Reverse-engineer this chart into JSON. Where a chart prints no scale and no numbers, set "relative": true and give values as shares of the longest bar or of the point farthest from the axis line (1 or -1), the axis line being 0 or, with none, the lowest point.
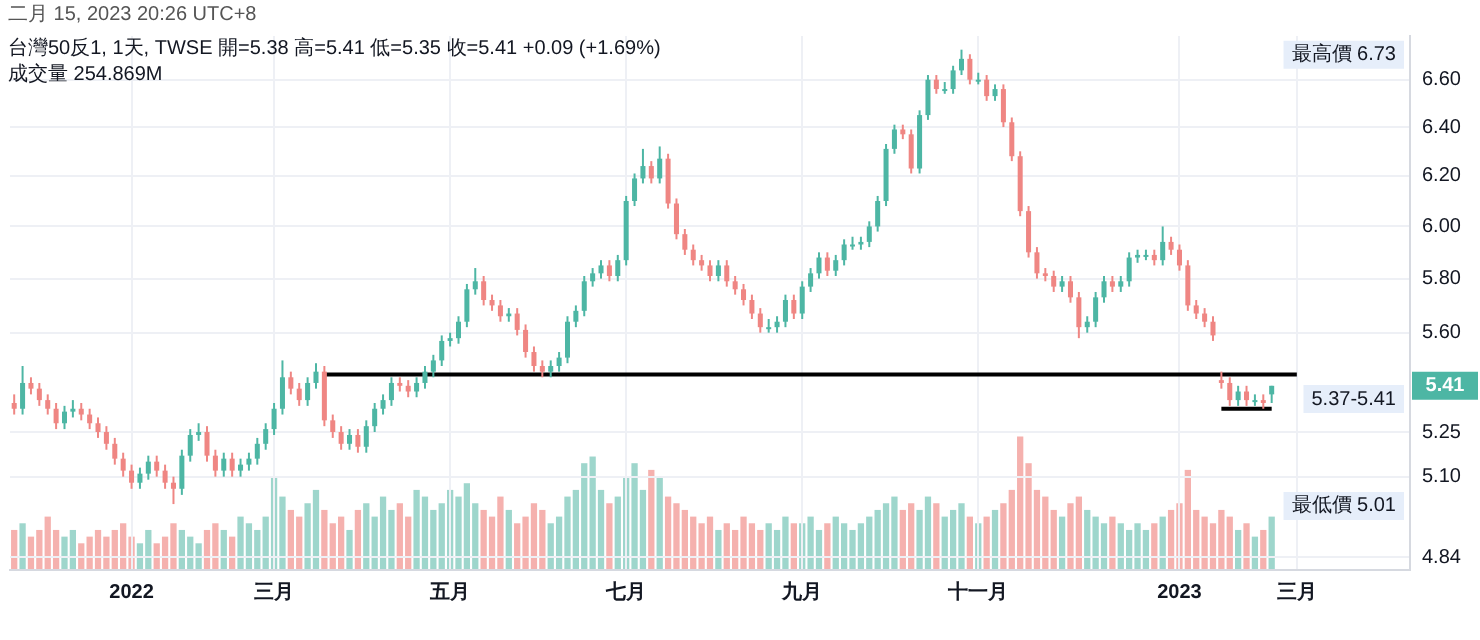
{
  "chart_data": [
    {
      "type": "candlestick",
      "subtitle": "二月 15, 2023 20:26 UTC+8",
      "title": "台灣50反1, 1天, TWSE  開=5.38  高=5.41  低=5.35  收=5.41  +0.09 (+1.69%)",
      "annotations": [
        "成交量 254.869M",
        "最高價 6.73",
        "最低價 5.01",
        "5.37-5.41",
        {
          "text": "5.41",
          "y": 5.41
        }
      ],
      "categories": [
        null,
        null,
        null,
        null,
        null,
        null,
        null,
        null,
        null,
        null,
        null,
        null,
        null,
        null,
        "2022",
        null,
        null,
        null,
        null,
        null,
        null,
        null,
        null,
        null,
        null,
        null,
        null,
        null,
        null,
        null,
        null,
        "三月",
        null,
        null,
        null,
        null,
        null,
        null,
        null,
        null,
        null,
        null,
        null,
        null,
        null,
        null,
        null,
        null,
        null,
        null,
        null,
        null,
        "五月",
        null,
        null,
        null,
        null,
        null,
        null,
        null,
        null,
        null,
        null,
        null,
        null,
        null,
        null,
        null,
        null,
        null,
        null,
        null,
        null,
        "七月",
        null,
        null,
        null,
        null,
        null,
        null,
        null,
        null,
        null,
        null,
        null,
        null,
        null,
        null,
        null,
        null,
        null,
        null,
        null,
        null,
        "九月",
        null,
        null,
        null,
        null,
        null,
        null,
        null,
        null,
        null,
        null,
        null,
        null,
        null,
        null,
        null,
        null,
        null,
        null,
        null,
        null,
        "十一月",
        null,
        null,
        null,
        null,
        null,
        null,
        null,
        null,
        null,
        null,
        null,
        null,
        null,
        null,
        null,
        null,
        null,
        null,
        null,
        null,
        null,
        null,
        null,
        "2023",
        null,
        null,
        null,
        null,
        null,
        null,
        null,
        null,
        null,
        null,
        null,
        null,
        null,
        "三月",
        null,
        null,
        null,
        null,
        null,
        null,
        null,
        null,
        null,
        null,
        null,
        null,
        null
      ],
      "ohlc": [
        [
          5.35,
          5.38,
          5.31,
          5.33
        ],
        [
          5.33,
          5.48,
          5.31,
          5.42
        ],
        [
          5.42,
          5.44,
          5.38,
          5.4
        ],
        [
          5.4,
          5.42,
          5.34,
          5.36
        ],
        [
          5.36,
          5.38,
          5.31,
          5.33
        ],
        [
          5.33,
          5.35,
          5.26,
          5.28
        ],
        [
          5.28,
          5.34,
          5.26,
          5.32
        ],
        [
          5.32,
          5.36,
          5.3,
          5.33
        ],
        [
          5.33,
          5.35,
          5.29,
          5.31
        ],
        [
          5.31,
          5.33,
          5.26,
          5.28
        ],
        [
          5.28,
          5.3,
          5.23,
          5.25
        ],
        [
          5.25,
          5.27,
          5.19,
          5.21
        ],
        [
          5.21,
          5.23,
          5.14,
          5.16
        ],
        [
          5.16,
          5.18,
          5.1,
          5.12
        ],
        [
          5.12,
          5.14,
          5.06,
          5.08
        ],
        [
          5.08,
          5.13,
          5.06,
          5.11
        ],
        [
          5.11,
          5.17,
          5.09,
          5.15
        ],
        [
          5.15,
          5.17,
          5.1,
          5.12
        ],
        [
          5.12,
          5.14,
          5.06,
          5.08
        ],
        [
          5.08,
          5.1,
          5.01,
          5.06
        ],
        [
          5.06,
          5.19,
          5.04,
          5.17
        ],
        [
          5.17,
          5.26,
          5.15,
          5.24
        ],
        [
          5.24,
          5.28,
          5.22,
          5.25
        ],
        [
          5.25,
          5.27,
          5.15,
          5.17
        ],
        [
          5.17,
          5.19,
          5.1,
          5.12
        ],
        [
          5.12,
          5.18,
          5.1,
          5.16
        ],
        [
          5.16,
          5.18,
          5.1,
          5.12
        ],
        [
          5.12,
          5.16,
          5.1,
          5.14
        ],
        [
          5.14,
          5.18,
          5.12,
          5.16
        ],
        [
          5.16,
          5.23,
          5.14,
          5.21
        ],
        [
          5.21,
          5.28,
          5.19,
          5.26
        ],
        [
          5.26,
          5.35,
          5.24,
          5.33
        ],
        [
          5.33,
          5.5,
          5.31,
          5.44
        ],
        [
          5.44,
          5.46,
          5.38,
          5.4
        ],
        [
          5.4,
          5.42,
          5.34,
          5.36
        ],
        [
          5.36,
          5.44,
          5.34,
          5.42
        ],
        [
          5.42,
          5.49,
          5.4,
          5.46
        ],
        [
          5.46,
          5.48,
          5.27,
          5.29
        ],
        [
          5.29,
          5.31,
          5.23,
          5.25
        ],
        [
          5.25,
          5.27,
          5.19,
          5.21
        ],
        [
          5.21,
          5.26,
          5.19,
          5.24
        ],
        [
          5.24,
          5.26,
          5.18,
          5.2
        ],
        [
          5.2,
          5.29,
          5.18,
          5.27
        ],
        [
          5.27,
          5.35,
          5.25,
          5.33
        ],
        [
          5.33,
          5.38,
          5.31,
          5.36
        ],
        [
          5.36,
          5.44,
          5.34,
          5.42
        ],
        [
          5.42,
          5.44,
          5.39,
          5.41
        ],
        [
          5.41,
          5.43,
          5.37,
          5.39
        ],
        [
          5.39,
          5.44,
          5.37,
          5.42
        ],
        [
          5.42,
          5.48,
          5.4,
          5.46
        ],
        [
          5.46,
          5.52,
          5.44,
          5.5
        ],
        [
          5.5,
          5.59,
          5.48,
          5.57
        ],
        [
          5.57,
          5.6,
          5.55,
          5.58
        ],
        [
          5.58,
          5.66,
          5.56,
          5.64
        ],
        [
          5.64,
          5.78,
          5.62,
          5.76
        ],
        [
          5.76,
          5.84,
          5.74,
          5.79
        ],
        [
          5.79,
          5.81,
          5.7,
          5.72
        ],
        [
          5.72,
          5.74,
          5.68,
          5.7
        ],
        [
          5.7,
          5.72,
          5.64,
          5.66
        ],
        [
          5.66,
          5.69,
          5.64,
          5.67
        ],
        [
          5.67,
          5.69,
          5.59,
          5.61
        ],
        [
          5.61,
          5.63,
          5.51,
          5.53
        ],
        [
          5.53,
          5.55,
          5.46,
          5.48
        ],
        [
          5.48,
          5.5,
          5.44,
          5.46
        ],
        [
          5.46,
          5.5,
          5.44,
          5.48
        ],
        [
          5.48,
          5.53,
          5.46,
          5.51
        ],
        [
          5.51,
          5.66,
          5.49,
          5.64
        ],
        [
          5.64,
          5.7,
          5.62,
          5.68
        ],
        [
          5.68,
          5.81,
          5.66,
          5.79
        ],
        [
          5.79,
          5.84,
          5.77,
          5.82
        ],
        [
          5.82,
          5.87,
          5.8,
          5.85
        ],
        [
          5.85,
          5.87,
          5.79,
          5.81
        ],
        [
          5.81,
          5.89,
          5.79,
          5.87
        ],
        [
          5.87,
          6.12,
          5.85,
          6.1
        ],
        [
          6.1,
          6.21,
          6.08,
          6.19
        ],
        [
          6.19,
          6.31,
          6.17,
          6.24
        ],
        [
          6.24,
          6.26,
          6.17,
          6.19
        ],
        [
          6.19,
          6.32,
          6.17,
          6.27
        ],
        [
          6.27,
          6.29,
          6.07,
          6.09
        ],
        [
          6.09,
          6.11,
          5.95,
          5.97
        ],
        [
          5.97,
          5.99,
          5.89,
          5.91
        ],
        [
          5.91,
          5.93,
          5.85,
          5.87
        ],
        [
          5.87,
          5.89,
          5.83,
          5.85
        ],
        [
          5.85,
          5.87,
          5.79,
          5.81
        ],
        [
          5.81,
          5.87,
          5.79,
          5.85
        ],
        [
          5.85,
          5.87,
          5.77,
          5.79
        ],
        [
          5.79,
          5.81,
          5.74,
          5.76
        ],
        [
          5.76,
          5.78,
          5.7,
          5.72
        ],
        [
          5.72,
          5.74,
          5.65,
          5.67
        ],
        [
          5.67,
          5.69,
          5.6,
          5.62
        ],
        [
          5.62,
          5.65,
          5.6,
          5.62
        ],
        [
          5.62,
          5.66,
          5.6,
          5.64
        ],
        [
          5.64,
          5.74,
          5.62,
          5.72
        ],
        [
          5.72,
          5.74,
          5.65,
          5.67
        ],
        [
          5.67,
          5.79,
          5.65,
          5.77
        ],
        [
          5.77,
          5.84,
          5.75,
          5.82
        ],
        [
          5.82,
          5.9,
          5.8,
          5.88
        ],
        [
          5.88,
          5.9,
          5.81,
          5.83
        ],
        [
          5.83,
          5.89,
          5.81,
          5.87
        ],
        [
          5.87,
          5.95,
          5.85,
          5.93
        ],
        [
          5.93,
          5.96,
          5.91,
          5.93
        ],
        [
          5.93,
          5.96,
          5.91,
          5.94
        ],
        [
          5.94,
          6.02,
          5.92,
          6.0
        ],
        [
          6.0,
          6.12,
          5.98,
          6.1
        ],
        [
          6.1,
          6.33,
          6.08,
          6.31
        ],
        [
          6.31,
          6.41,
          6.29,
          6.39
        ],
        [
          6.39,
          6.41,
          6.35,
          6.37
        ],
        [
          6.37,
          6.39,
          6.21,
          6.23
        ],
        [
          6.23,
          6.47,
          6.21,
          6.45
        ],
        [
          6.45,
          6.62,
          6.43,
          6.6
        ],
        [
          6.6,
          6.62,
          6.54,
          6.56
        ],
        [
          6.56,
          6.59,
          6.54,
          6.56
        ],
        [
          6.56,
          6.66,
          6.54,
          6.64
        ],
        [
          6.64,
          6.73,
          6.62,
          6.69
        ],
        [
          6.69,
          6.71,
          6.58,
          6.6
        ],
        [
          6.6,
          6.63,
          6.58,
          6.6
        ],
        [
          6.6,
          6.62,
          6.51,
          6.53
        ],
        [
          6.53,
          6.58,
          6.51,
          6.56
        ],
        [
          6.56,
          6.58,
          6.4,
          6.42
        ],
        [
          6.42,
          6.44,
          6.26,
          6.28
        ],
        [
          6.28,
          6.3,
          6.04,
          6.06
        ],
        [
          6.06,
          6.08,
          5.88,
          5.9
        ],
        [
          5.9,
          5.92,
          5.8,
          5.82
        ],
        [
          5.82,
          5.84,
          5.79,
          5.81
        ],
        [
          5.81,
          5.83,
          5.75,
          5.77
        ],
        [
          5.77,
          5.81,
          5.75,
          5.79
        ],
        [
          5.79,
          5.81,
          5.71,
          5.73
        ],
        [
          5.73,
          5.75,
          5.58,
          5.62
        ],
        [
          5.62,
          5.66,
          5.6,
          5.64
        ],
        [
          5.64,
          5.75,
          5.62,
          5.73
        ],
        [
          5.73,
          5.81,
          5.71,
          5.79
        ],
        [
          5.79,
          5.81,
          5.75,
          5.77
        ],
        [
          5.77,
          5.81,
          5.75,
          5.79
        ],
        [
          5.79,
          5.9,
          5.77,
          5.88
        ],
        [
          5.88,
          5.91,
          5.86,
          5.89
        ],
        [
          5.89,
          5.91,
          5.87,
          5.89
        ],
        [
          5.89,
          5.91,
          5.85,
          5.87
        ],
        [
          5.87,
          6.0,
          5.85,
          5.94
        ],
        [
          5.94,
          5.96,
          5.89,
          5.91
        ],
        [
          5.91,
          5.93,
          5.83,
          5.85
        ],
        [
          5.85,
          5.87,
          5.68,
          5.7
        ],
        [
          5.7,
          5.72,
          5.65,
          5.67
        ],
        [
          5.67,
          5.69,
          5.62,
          5.64
        ],
        [
          5.64,
          5.66,
          5.57,
          5.59
        ],
        [
          5.43,
          5.46,
          5.4,
          5.42
        ],
        [
          5.42,
          5.44,
          5.34,
          5.36
        ],
        [
          5.36,
          5.41,
          5.34,
          5.39
        ],
        [
          5.39,
          5.41,
          5.34,
          5.36
        ],
        [
          5.36,
          5.38,
          5.34,
          5.36
        ],
        [
          5.36,
          5.38,
          5.33,
          5.35
        ],
        [
          5.38,
          5.41,
          5.35,
          5.41
        ],
        null,
        null,
        null,
        null,
        null,
        null,
        null,
        null,
        null,
        null,
        null,
        null,
        null,
        null,
        null,
        null
      ],
      "colors": [
        "#ef8683",
        "#4db6a4",
        "#ef8683",
        "#ef8683",
        "#ef8683",
        "#ef8683",
        "#4db6a4",
        "#4db6a4",
        "#ef8683",
        "#ef8683",
        "#ef8683",
        "#ef8683",
        "#ef8683",
        "#ef8683",
        "#ef8683",
        "#4db6a4",
        "#4db6a4",
        "#ef8683",
        "#ef8683",
        "#ef8683",
        "#4db6a4",
        "#4db6a4",
        "#4db6a4",
        "#ef8683",
        "#ef8683",
        "#4db6a4",
        "#ef8683",
        "#4db6a4",
        "#4db6a4",
        "#4db6a4",
        "#4db6a4",
        "#4db6a4",
        "#4db6a4",
        "#ef8683",
        "#ef8683",
        "#4db6a4",
        "#4db6a4",
        "#ef8683",
        "#ef8683",
        "#ef8683",
        "#4db6a4",
        "#ef8683",
        "#4db6a4",
        "#4db6a4",
        "#4db6a4",
        "#4db6a4",
        "#ef8683",
        "#ef8683",
        "#4db6a4",
        "#4db6a4",
        "#4db6a4",
        "#4db6a4",
        "#4db6a4",
        "#4db6a4",
        "#4db6a4",
        "#4db6a4",
        "#ef8683",
        "#ef8683",
        "#ef8683",
        "#4db6a4",
        "#ef8683",
        "#ef8683",
        "#ef8683",
        "#ef8683",
        "#4db6a4",
        "#4db6a4",
        "#4db6a4",
        "#4db6a4",
        "#4db6a4",
        "#4db6a4",
        "#4db6a4",
        "#ef8683",
        "#4db6a4",
        "#4db6a4",
        "#4db6a4",
        "#4db6a4",
        "#ef8683",
        "#4db6a4",
        "#ef8683",
        "#ef8683",
        "#ef8683",
        "#ef8683",
        "#ef8683",
        "#ef8683",
        "#4db6a4",
        "#ef8683",
        "#ef8683",
        "#ef8683",
        "#ef8683",
        "#ef8683",
        "#4db6a4",
        "#4db6a4",
        "#4db6a4",
        "#ef8683",
        "#4db6a4",
        "#4db6a4",
        "#4db6a4",
        "#ef8683",
        "#4db6a4",
        "#4db6a4",
        "#4db6a4",
        "#4db6a4",
        "#4db6a4",
        "#4db6a4",
        "#4db6a4",
        "#4db6a4",
        "#ef8683",
        "#ef8683",
        "#4db6a4",
        "#4db6a4",
        "#ef8683",
        "#4db6a4",
        "#4db6a4",
        "#4db6a4",
        "#ef8683",
        "#4db6a4",
        "#ef8683",
        "#4db6a4",
        "#ef8683",
        "#ef8683",
        "#ef8683",
        "#ef8683",
        "#ef8683",
        "#ef8683",
        "#ef8683",
        "#4db6a4",
        "#ef8683",
        "#ef8683",
        "#4db6a4",
        "#4db6a4",
        "#4db6a4",
        "#ef8683",
        "#4db6a4",
        "#4db6a4",
        "#4db6a4",
        "#4db6a4",
        "#ef8683",
        "#4db6a4",
        "#ef8683",
        "#ef8683",
        "#ef8683",
        "#ef8683",
        "#ef8683",
        "#ef8683",
        "#ef8683",
        "#ef8683",
        "#4db6a4",
        "#ef8683",
        "#4db6a4",
        "#ef8683",
        "#4db6a4",
        null,
        null,
        null,
        null,
        null,
        null,
        null,
        null,
        null,
        null,
        null,
        null,
        null,
        null,
        null,
        null
      ],
      "series": [
        {
          "type": "line",
          "color": "#000000",
          "values": [
            null,
            null,
            null,
            null,
            null,
            null,
            null,
            null,
            null,
            null,
            null,
            null,
            null,
            null,
            null,
            null,
            null,
            null,
            null,
            null,
            null,
            null,
            null,
            null,
            null,
            null,
            null,
            null,
            null,
            null,
            null,
            null,
            null,
            null,
            null,
            null,
            null,
            5.45,
            5.45,
            5.45,
            5.45,
            5.45,
            5.45,
            5.45,
            5.45,
            5.45,
            5.45,
            5.45,
            5.45,
            5.45,
            5.45,
            5.45,
            5.45,
            5.45,
            5.45,
            5.45,
            5.45,
            5.45,
            5.45,
            5.45,
            5.45,
            5.45,
            5.45,
            5.45,
            5.45,
            5.45,
            5.45,
            5.45,
            5.45,
            5.45,
            5.45,
            5.45,
            5.45,
            5.45,
            5.45,
            5.45,
            5.45,
            5.45,
            5.45,
            5.45,
            5.45,
            5.45,
            5.45,
            5.45,
            5.45,
            5.45,
            5.45,
            5.45,
            5.45,
            5.45,
            5.45,
            5.45,
            5.45,
            5.45,
            5.45,
            5.45,
            5.45,
            5.45,
            5.45,
            5.45,
            5.45,
            5.45,
            5.45,
            5.45,
            5.45,
            5.45,
            5.45,
            5.45,
            5.45,
            5.45,
            5.45,
            5.45,
            5.45,
            5.45,
            5.45,
            5.45,
            5.45,
            5.45,
            5.45,
            5.45,
            5.45,
            5.45,
            5.45,
            5.45,
            5.45,
            5.45,
            5.45,
            5.45,
            5.45,
            5.45,
            5.45,
            5.45,
            5.45,
            5.45,
            5.45,
            5.45,
            5.45,
            5.45,
            5.45,
            5.45,
            5.45,
            5.45,
            5.45,
            5.45,
            5.45,
            5.45,
            5.45,
            5.45,
            5.45,
            5.45,
            5.45,
            5.45,
            5.45,
            5.45,
            null,
            null,
            null,
            null,
            null,
            null,
            null,
            null,
            null,
            null,
            null,
            null,
            null
          ]
        },
        {
          "type": "line",
          "color": "#000000",
          "values": [
            null,
            null,
            null,
            null,
            null,
            null,
            null,
            null,
            null,
            null,
            null,
            null,
            null,
            null,
            null,
            null,
            null,
            null,
            null,
            null,
            null,
            null,
            null,
            null,
            null,
            null,
            null,
            null,
            null,
            null,
            null,
            null,
            null,
            null,
            null,
            null,
            null,
            null,
            null,
            null,
            null,
            null,
            null,
            null,
            null,
            null,
            null,
            null,
            null,
            null,
            null,
            null,
            null,
            null,
            null,
            null,
            null,
            null,
            null,
            null,
            null,
            null,
            null,
            null,
            null,
            null,
            null,
            null,
            null,
            null,
            null,
            null,
            null,
            null,
            null,
            null,
            null,
            null,
            null,
            null,
            null,
            null,
            null,
            null,
            null,
            null,
            null,
            null,
            null,
            null,
            null,
            null,
            null,
            null,
            null,
            null,
            null,
            null,
            null,
            null,
            null,
            null,
            null,
            null,
            null,
            null,
            null,
            null,
            null,
            null,
            null,
            null,
            null,
            null,
            null,
            null,
            null,
            null,
            null,
            null,
            null,
            null,
            null,
            null,
            null,
            null,
            null,
            null,
            null,
            null,
            null,
            null,
            null,
            null,
            null,
            null,
            null,
            null,
            null,
            null,
            null,
            null,
            null,
            null,
            5.33,
            5.33,
            5.33,
            5.33,
            5.33,
            5.33,
            5.33,
            null,
            null,
            null,
            null,
            null,
            null,
            null,
            null,
            null,
            null,
            null,
            null,
            null,
            null,
            null,
            null
          ]
        }
      ],
      "ylim": [
        4.8,
        6.79
      ],
      "yticks": [
        {
          "value": 6.6,
          "label": "6.60"
        },
        {
          "value": 6.4,
          "label": "6.40"
        },
        {
          "value": 6.2,
          "label": "6.20"
        },
        {
          "value": 6.0,
          "label": "6.00"
        },
        {
          "value": 5.8,
          "label": "5.80"
        },
        {
          "value": 5.6,
          "label": "5.60"
        },
        5.25,
        {
          "value": 5.1,
          "label": "5.10"
        },
        4.84
      ],
      "log": true,
      "grid": true
    },
    {
      "type": "bar",
      "relative": true,
      "tick_labels": false,
      "categories": [
        null,
        null,
        null,
        null,
        null,
        null,
        null,
        null,
        null,
        null,
        null,
        null,
        null,
        null,
        null,
        null,
        null,
        null,
        null,
        null,
        null,
        null,
        null,
        null,
        null,
        null,
        null,
        null,
        null,
        null,
        null,
        null,
        null,
        null,
        null,
        null,
        null,
        null,
        null,
        null,
        null,
        null,
        null,
        null,
        null,
        null,
        null,
        null,
        null,
        null,
        null,
        null,
        null,
        null,
        null,
        null,
        null,
        null,
        null,
        null,
        null,
        null,
        null,
        null,
        null,
        null,
        null,
        null,
        null,
        null,
        null,
        null,
        null,
        null,
        null,
        null,
        null,
        null,
        null,
        null,
        null,
        null,
        null,
        null,
        null,
        null,
        null,
        null,
        null,
        null,
        null,
        null,
        null,
        null,
        null,
        null,
        null,
        null,
        null,
        null,
        null,
        null,
        null,
        null,
        null,
        null,
        null,
        null,
        null,
        null,
        null,
        null,
        null,
        null,
        null,
        null,
        null,
        null,
        null,
        null,
        null,
        null,
        null,
        null,
        null,
        null,
        null,
        null,
        null,
        null,
        null,
        null,
        null,
        null,
        null,
        null,
        null,
        null,
        null,
        null,
        null,
        null,
        null,
        null,
        null,
        null,
        null,
        null,
        null,
        null,
        null,
        null,
        null,
        null,
        null,
        null,
        null,
        null,
        null,
        null,
        null,
        null,
        null,
        null,
        null,
        null,
        null
      ],
      "values": [
        0.3,
        0.35,
        0.25,
        0.3,
        0.4,
        0.3,
        0.25,
        0.3,
        0.2,
        0.25,
        0.3,
        0.25,
        0.3,
        0.35,
        0.25,
        0.2,
        0.3,
        0.2,
        0.25,
        0.35,
        0.3,
        0.25,
        0.2,
        0.3,
        0.35,
        0.3,
        0.25,
        0.4,
        0.35,
        0.3,
        0.4,
        0.7,
        0.55,
        0.45,
        0.4,
        0.5,
        0.6,
        0.45,
        0.35,
        0.4,
        0.3,
        0.45,
        0.5,
        0.4,
        0.55,
        0.45,
        0.5,
        0.4,
        0.6,
        0.55,
        0.45,
        0.5,
        0.6,
        0.55,
        0.65,
        0.5,
        0.45,
        0.4,
        0.55,
        0.45,
        0.35,
        0.4,
        0.5,
        0.45,
        0.35,
        0.4,
        0.55,
        0.6,
        0.8,
        0.85,
        0.6,
        0.5,
        0.55,
        0.7,
        0.8,
        0.6,
        0.75,
        0.7,
        0.55,
        0.5,
        0.45,
        0.4,
        0.35,
        0.4,
        0.3,
        0.35,
        0.3,
        0.4,
        0.35,
        0.3,
        0.35,
        0.3,
        0.4,
        0.35,
        0.35,
        0.4,
        0.3,
        0.35,
        0.4,
        0.35,
        0.3,
        0.35,
        0.4,
        0.45,
        0.5,
        0.55,
        0.45,
        0.5,
        0.45,
        0.55,
        0.5,
        0.4,
        0.45,
        0.5,
        0.4,
        0.35,
        0.4,
        0.45,
        0.5,
        0.6,
        1,
        0.8,
        0.6,
        0.55,
        0.45,
        0.4,
        0.5,
        0.55,
        0.45,
        0.4,
        0.35,
        0.4,
        0.35,
        0.3,
        0.35,
        0.3,
        0.35,
        0.4,
        0.45,
        0.5,
        0.75,
        0.45,
        0.4,
        0.35,
        0.45,
        0.4,
        0.3,
        0.35,
        0.25,
        0.3,
        0.4,
        null,
        null,
        null,
        null,
        null,
        null,
        null,
        null,
        null,
        null,
        null,
        null,
        null,
        null,
        null,
        null
      ],
      "colors": [
        "#f5b1ae",
        "#9ed6cc",
        "#f5b1ae",
        "#f5b1ae",
        "#f5b1ae",
        "#f5b1ae",
        "#9ed6cc",
        "#9ed6cc",
        "#f5b1ae",
        "#f5b1ae",
        "#f5b1ae",
        "#f5b1ae",
        "#f5b1ae",
        "#f5b1ae",
        "#f5b1ae",
        "#9ed6cc",
        "#9ed6cc",
        "#f5b1ae",
        "#f5b1ae",
        "#f5b1ae",
        "#9ed6cc",
        "#9ed6cc",
        "#9ed6cc",
        "#f5b1ae",
        "#f5b1ae",
        "#9ed6cc",
        "#f5b1ae",
        "#9ed6cc",
        "#9ed6cc",
        "#9ed6cc",
        "#9ed6cc",
        "#9ed6cc",
        "#9ed6cc",
        "#f5b1ae",
        "#f5b1ae",
        "#9ed6cc",
        "#9ed6cc",
        "#f5b1ae",
        "#f5b1ae",
        "#f5b1ae",
        "#9ed6cc",
        "#f5b1ae",
        "#9ed6cc",
        "#9ed6cc",
        "#9ed6cc",
        "#9ed6cc",
        "#f5b1ae",
        "#f5b1ae",
        "#9ed6cc",
        "#9ed6cc",
        "#9ed6cc",
        "#9ed6cc",
        "#9ed6cc",
        "#9ed6cc",
        "#9ed6cc",
        "#9ed6cc",
        "#f5b1ae",
        "#f5b1ae",
        "#f5b1ae",
        "#9ed6cc",
        "#f5b1ae",
        "#f5b1ae",
        "#f5b1ae",
        "#f5b1ae",
        "#9ed6cc",
        "#9ed6cc",
        "#9ed6cc",
        "#9ed6cc",
        "#9ed6cc",
        "#9ed6cc",
        "#9ed6cc",
        "#f5b1ae",
        "#9ed6cc",
        "#9ed6cc",
        "#9ed6cc",
        "#9ed6cc",
        "#f5b1ae",
        "#9ed6cc",
        "#f5b1ae",
        "#f5b1ae",
        "#f5b1ae",
        "#f5b1ae",
        "#f5b1ae",
        "#f5b1ae",
        "#9ed6cc",
        "#f5b1ae",
        "#f5b1ae",
        "#f5b1ae",
        "#f5b1ae",
        "#f5b1ae",
        "#9ed6cc",
        "#9ed6cc",
        "#9ed6cc",
        "#f5b1ae",
        "#9ed6cc",
        "#9ed6cc",
        "#9ed6cc",
        "#f5b1ae",
        "#9ed6cc",
        "#9ed6cc",
        "#9ed6cc",
        "#9ed6cc",
        "#9ed6cc",
        "#9ed6cc",
        "#9ed6cc",
        "#9ed6cc",
        "#f5b1ae",
        "#f5b1ae",
        "#9ed6cc",
        "#9ed6cc",
        "#f5b1ae",
        "#9ed6cc",
        "#9ed6cc",
        "#9ed6cc",
        "#f5b1ae",
        "#9ed6cc",
        "#f5b1ae",
        "#9ed6cc",
        "#f5b1ae",
        "#f5b1ae",
        "#f5b1ae",
        "#f5b1ae",
        "#f5b1ae",
        "#f5b1ae",
        "#f5b1ae",
        "#9ed6cc",
        "#f5b1ae",
        "#f5b1ae",
        "#9ed6cc",
        "#9ed6cc",
        "#9ed6cc",
        "#f5b1ae",
        "#9ed6cc",
        "#9ed6cc",
        "#9ed6cc",
        "#9ed6cc",
        "#f5b1ae",
        "#9ed6cc",
        "#f5b1ae",
        "#f5b1ae",
        "#f5b1ae",
        "#f5b1ae",
        "#f5b1ae",
        "#f5b1ae",
        "#f5b1ae",
        "#f5b1ae",
        "#9ed6cc",
        "#f5b1ae",
        "#9ed6cc",
        "#f5b1ae",
        "#9ed6cc",
        null,
        null,
        null,
        null,
        null,
        null,
        null,
        null,
        null,
        null,
        null,
        null,
        null,
        null,
        null,
        null
      ]
    }
  ]
}
